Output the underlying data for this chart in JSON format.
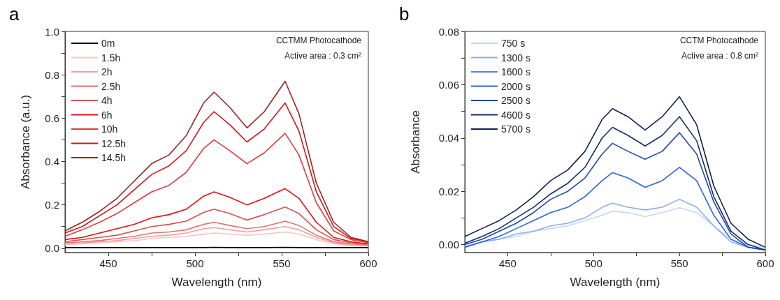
{
  "chart_data": [
    {
      "type": "line",
      "title": "a",
      "xlabel": "Wavelength (nm)",
      "ylabel": "Absorbance (a.u.)",
      "annotations": [
        "CCTMM Photocathode",
        "Active area : 0.3 cm²"
      ],
      "legend": "top left",
      "grid": false,
      "xlim": [
        425,
        600
      ],
      "xticks": [
        450,
        {
          "value": 475,
          "label": null
        },
        500,
        {
          "value": 525,
          "label": null
        },
        550,
        {
          "value": 575,
          "label": null
        },
        600
      ],
      "ylim": [
        -0.02,
        1.0
      ],
      "yticks": [
        {
          "value": 0,
          "label": "0.0"
        },
        {
          "value": 0.1,
          "label": null
        },
        0.2,
        {
          "value": 0.3,
          "label": null
        },
        0.4,
        {
          "value": 0.5,
          "label": null
        },
        0.6,
        {
          "value": 0.7,
          "label": null
        },
        0.8,
        {
          "value": 0.9,
          "label": null
        },
        {
          "value": 1,
          "label": "1.0"
        }
      ],
      "x": [
        425,
        435,
        445,
        455,
        465,
        475,
        485,
        495,
        505,
        511,
        520,
        530,
        540,
        552,
        560,
        570,
        580,
        590,
        600
      ],
      "series": [
        {
          "name": "0m",
          "color": "#000000",
          "values": [
            0.003,
            0.003,
            0.003,
            0.003,
            0.003,
            0.003,
            0.003,
            0.003,
            0.003,
            0.004,
            0.003,
            0.003,
            0.003,
            0.004,
            0.003,
            0.003,
            0.003,
            0.003,
            0.003
          ]
        },
        {
          "name": "1.5h",
          "color": "#f7c6c6",
          "values": [
            0.015,
            0.02,
            0.025,
            0.03,
            0.035,
            0.045,
            0.05,
            0.055,
            0.065,
            0.07,
            0.065,
            0.06,
            0.065,
            0.075,
            0.065,
            0.04,
            0.02,
            0.012,
            0.01
          ]
        },
        {
          "name": "2h",
          "color": "#f0a0a0",
          "values": [
            0.02,
            0.025,
            0.03,
            0.035,
            0.045,
            0.055,
            0.06,
            0.07,
            0.09,
            0.095,
            0.085,
            0.075,
            0.085,
            0.1,
            0.085,
            0.05,
            0.025,
            0.015,
            0.012
          ]
        },
        {
          "name": "2.5h",
          "color": "#e87070",
          "values": [
            0.025,
            0.03,
            0.035,
            0.045,
            0.055,
            0.07,
            0.075,
            0.085,
            0.11,
            0.12,
            0.105,
            0.09,
            0.1,
            0.125,
            0.105,
            0.06,
            0.03,
            0.02,
            0.015
          ]
        },
        {
          "name": "4h",
          "color": "#dc5050",
          "values": [
            0.03,
            0.04,
            0.05,
            0.06,
            0.08,
            0.1,
            0.11,
            0.125,
            0.165,
            0.18,
            0.16,
            0.13,
            0.155,
            0.19,
            0.16,
            0.085,
            0.04,
            0.025,
            0.02
          ]
        },
        {
          "name": "6h",
          "color": "#e01010",
          "values": [
            0.04,
            0.05,
            0.07,
            0.09,
            0.11,
            0.14,
            0.155,
            0.18,
            0.24,
            0.26,
            0.235,
            0.2,
            0.23,
            0.275,
            0.23,
            0.12,
            0.05,
            0.03,
            0.02
          ]
        },
        {
          "name": "10h",
          "color": "#e03a3a",
          "values": [
            0.055,
            0.085,
            0.12,
            0.16,
            0.21,
            0.26,
            0.29,
            0.35,
            0.46,
            0.5,
            0.45,
            0.39,
            0.44,
            0.53,
            0.43,
            0.21,
            0.08,
            0.04,
            0.025
          ]
        },
        {
          "name": "12.5h",
          "color": "#cc1818",
          "values": [
            0.07,
            0.1,
            0.15,
            0.2,
            0.27,
            0.34,
            0.38,
            0.45,
            0.58,
            0.63,
            0.57,
            0.49,
            0.55,
            0.67,
            0.54,
            0.26,
            0.1,
            0.045,
            0.03
          ]
        },
        {
          "name": "14.5h",
          "color": "#9c2222",
          "values": [
            0.08,
            0.12,
            0.17,
            0.23,
            0.31,
            0.39,
            0.43,
            0.52,
            0.67,
            0.72,
            0.65,
            0.555,
            0.63,
            0.77,
            0.62,
            0.3,
            0.12,
            0.05,
            0.03
          ]
        }
      ]
    },
    {
      "type": "line",
      "title": "b",
      "xlabel": "Wavelength (nm)",
      "ylabel": "Absorbance",
      "annotations": [
        "CCTM Photocathode",
        "Active area : 0.8 cm²"
      ],
      "legend": "top left",
      "grid": false,
      "xlim": [
        425,
        600
      ],
      "xticks": [
        450,
        {
          "value": 475,
          "label": null
        },
        500,
        {
          "value": 525,
          "label": null
        },
        550,
        {
          "value": 575,
          "label": null
        },
        600
      ],
      "ylim": [
        -0.003,
        0.08
      ],
      "yticks": [
        {
          "value": 0,
          "label": "0.00"
        },
        {
          "value": 0.01,
          "label": null
        },
        {
          "value": 0.02,
          "label": "0.02"
        },
        {
          "value": 0.03,
          "label": null
        },
        {
          "value": 0.04,
          "label": "0.04"
        },
        {
          "value": 0.05,
          "label": null
        },
        {
          "value": 0.06,
          "label": "0.06"
        },
        {
          "value": 0.07,
          "label": null
        },
        {
          "value": 0.08,
          "label": "0.08"
        }
      ],
      "x": [
        425,
        435,
        445,
        455,
        465,
        475,
        485,
        495,
        505,
        511,
        520,
        530,
        540,
        550,
        560,
        570,
        580,
        590,
        600
      ],
      "series": [
        {
          "name": "750 s",
          "color": "#c5d6f5",
          "values": [
            -0.0005,
            0.001,
            0.002,
            0.003,
            0.005,
            0.006,
            0.007,
            0.009,
            0.011,
            0.0125,
            0.012,
            0.0105,
            0.012,
            0.0138,
            0.012,
            0.007,
            0.002,
            0.0,
            -0.001
          ]
        },
        {
          "name": "1300 s",
          "color": "#8aaef0",
          "values": [
            -0.001,
            0.001,
            0.002,
            0.004,
            0.005,
            0.007,
            0.008,
            0.01,
            0.014,
            0.0155,
            0.014,
            0.013,
            0.014,
            0.017,
            0.014,
            0.007,
            0.001,
            -0.001,
            -0.002
          ]
        },
        {
          "name": "1600 s",
          "color": "#4f86ee",
          "values": [
            null,
            null,
            null,
            null,
            null,
            null,
            null,
            null,
            null,
            null,
            null,
            null,
            null,
            null,
            null,
            null,
            null,
            null,
            null
          ]
        },
        {
          "name": "2000 s",
          "color": "#2a64e6",
          "values": [
            -0.001,
            0.001,
            0.003,
            0.006,
            0.009,
            0.012,
            0.014,
            0.018,
            0.024,
            0.027,
            0.025,
            0.0215,
            0.024,
            0.029,
            0.024,
            0.011,
            0.002,
            -0.001,
            -0.002
          ]
        },
        {
          "name": "2500 s",
          "color": "#1f48ae",
          "values": [
            0.0,
            0.002,
            0.005,
            0.008,
            0.012,
            0.017,
            0.02,
            0.025,
            0.034,
            0.038,
            0.035,
            0.032,
            0.035,
            0.042,
            0.034,
            0.016,
            0.004,
            -0.001,
            -0.002
          ]
        },
        {
          "name": "4600 s",
          "color": "#182c6c",
          "values": [
            0.0005,
            0.003,
            0.006,
            0.01,
            0.014,
            0.019,
            0.023,
            0.029,
            0.04,
            0.044,
            0.041,
            0.037,
            0.041,
            0.048,
            0.039,
            0.018,
            0.005,
            0.0,
            -0.002
          ]
        },
        {
          "name": "5700 s",
          "color": "#14204e",
          "values": [
            0.003,
            0.006,
            0.009,
            0.013,
            0.018,
            0.024,
            0.028,
            0.035,
            0.047,
            0.051,
            0.048,
            0.043,
            0.048,
            0.0555,
            0.045,
            0.022,
            0.008,
            0.002,
            -0.001
          ]
        }
      ]
    }
  ]
}
